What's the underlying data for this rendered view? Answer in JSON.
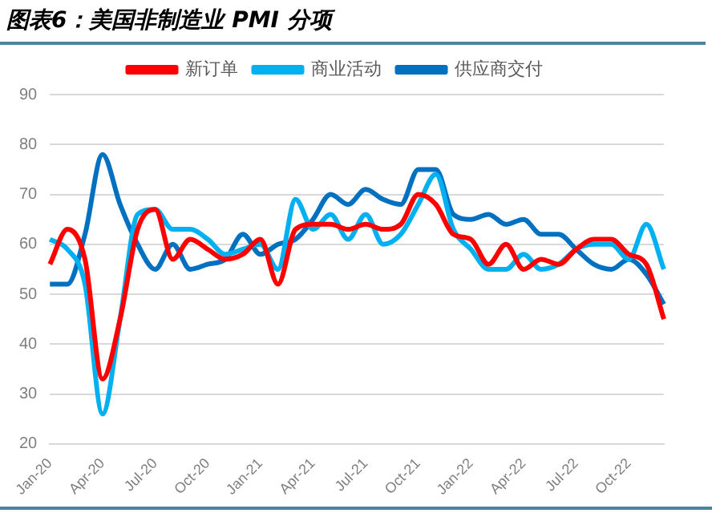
{
  "chart_data": {
    "type": "line",
    "title": "图表6：美国非制造业 PMI 分项",
    "categories": [
      "Jan-20",
      null,
      null,
      "Apr-20",
      null,
      null,
      "Jul-20",
      null,
      null,
      "Oct-20",
      null,
      null,
      "Jan-21",
      null,
      null,
      "Apr-21",
      null,
      null,
      "Jul-21",
      null,
      null,
      "Oct-21",
      null,
      null,
      "Jan-22",
      null,
      null,
      "Apr-22",
      null,
      null,
      "Jul-22",
      null,
      null,
      "Oct-22",
      null,
      null
    ],
    "series": [
      {
        "name": "新订单",
        "color": "#ff0000",
        "values": [
          56,
          63,
          57,
          33,
          45,
          63,
          67,
          57,
          61,
          59,
          57,
          58,
          61,
          52,
          63,
          64,
          64,
          63,
          64,
          63,
          64,
          70,
          68,
          62,
          61,
          56,
          60,
          55,
          57,
          56,
          59,
          61,
          61,
          58,
          56,
          45
        ]
      },
      {
        "name": "商业活动",
        "color": "#00b0f0",
        "values": [
          61,
          59,
          52,
          26,
          45,
          66,
          67,
          63,
          63,
          61,
          58,
          59,
          60,
          55,
          69,
          63,
          66,
          61,
          66,
          60,
          62,
          68,
          74,
          63,
          59,
          55,
          55,
          58,
          55,
          56,
          59,
          60,
          60,
          57,
          64,
          55
        ]
      },
      {
        "name": "供应商交付",
        "color": "#0070c0",
        "values": [
          52,
          52,
          62,
          78,
          68,
          60,
          55,
          60,
          55,
          56,
          57,
          62,
          58,
          60,
          61,
          65,
          70,
          68,
          71,
          69,
          68,
          75,
          75,
          66,
          65,
          66,
          64,
          65,
          62,
          62,
          59,
          56,
          55,
          57,
          54,
          48
        ]
      }
    ],
    "ylim": [
      20,
      90
    ],
    "yticks": [
      20,
      30,
      40,
      50,
      60,
      70,
      80,
      90
    ],
    "grid": "y",
    "legend": "top",
    "marker": "none",
    "line_style": "solid"
  }
}
